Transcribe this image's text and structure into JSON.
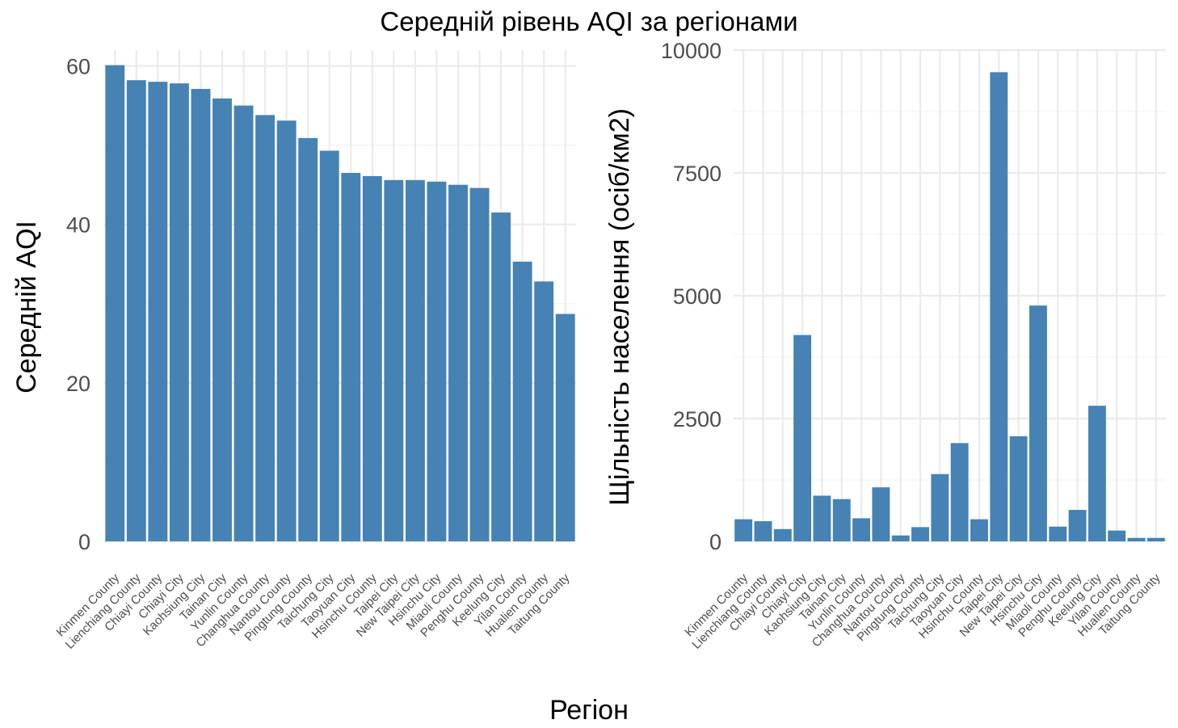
{
  "figure": {
    "title": "Середній рівень AQI за регіонами",
    "shared_xlabel": "Регіон",
    "bar_color": "#4682B4"
  },
  "chart_data": [
    {
      "type": "bar",
      "ylabel": "Середній AQI",
      "ylim": [
        0,
        62
      ],
      "yticks": [
        0,
        20,
        40,
        60
      ],
      "categories": [
        "Kinmen County",
        "Lienchiang County",
        "Chiayi County",
        "Chiayi City",
        "Kaohsiung City",
        "Tainan City",
        "Yunlin County",
        "Changhua County",
        "Nantou County",
        "Pingtung County",
        "Taichung City",
        "Taoyuan City",
        "Hsinchu County",
        "Taipei City",
        "New Taipei City",
        "Hsinchu City",
        "Miaoli County",
        "Penghu County",
        "Keelung City",
        "Yilan County",
        "Hualien County",
        "Taitung County"
      ],
      "values": [
        60.1,
        58.2,
        58.0,
        57.8,
        57.1,
        55.9,
        55.0,
        53.8,
        53.1,
        50.9,
        49.3,
        46.5,
        46.1,
        45.6,
        45.6,
        45.4,
        45.0,
        44.6,
        41.5,
        35.3,
        32.8,
        28.7
      ],
      "grid": true
    },
    {
      "type": "bar",
      "ylabel": "Щільність населення (осіб/км2)",
      "ylim": [
        0,
        10000
      ],
      "yticks": [
        0,
        2500,
        5000,
        7500,
        10000
      ],
      "categories": [
        "Kinmen County",
        "Lienchiang County",
        "Chiayi County",
        "Chiayi City",
        "Kaohsiung City",
        "Tainan City",
        "Yunlin County",
        "Changhua County",
        "Nantou County",
        "Pingtung County",
        "Taichung City",
        "Taoyuan City",
        "Hsinchu County",
        "Taipei City",
        "New Taipei City",
        "Hsinchu City",
        "Miaoli County",
        "Penghu County",
        "Keelung City",
        "Yilan County",
        "Hualien County",
        "Taitung County"
      ],
      "values": [
        450,
        410,
        250,
        4200,
        930,
        860,
        470,
        1100,
        120,
        290,
        1370,
        2000,
        450,
        9550,
        2140,
        4800,
        300,
        640,
        2760,
        220,
        70,
        70
      ],
      "grid": true
    }
  ]
}
